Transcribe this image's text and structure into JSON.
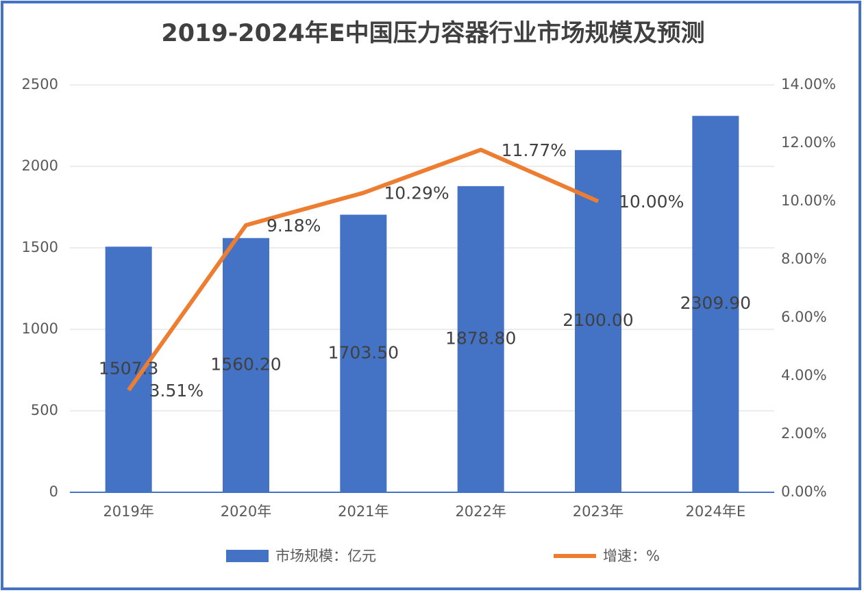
{
  "chart_data": {
    "type": "bar-line",
    "title": "2019-2024年E中国压力容器行业市场规模及预测",
    "categories": [
      "2019年",
      "2020年",
      "2021年",
      "2022年",
      "2023年",
      "2024年E"
    ],
    "series": [
      {
        "name": "市场规模：亿元",
        "type": "bar",
        "color": "#4472c4",
        "axis": "y",
        "values": [
          1507.3,
          1560.2,
          1703.5,
          1878.8,
          2100,
          2309.9
        ],
        "value_labels": [
          "1507.3",
          "1560.20",
          "1703.50",
          "1878.80",
          "2100.00",
          "2309.90"
        ]
      },
      {
        "name": "增速：%",
        "type": "line",
        "color": "#ed7d31",
        "axis": "y2",
        "values": [
          3.51,
          9.18,
          10.29,
          11.77,
          10.0,
          null
        ],
        "value_labels": [
          "3.51%",
          "9.18%",
          "10.29%",
          "11.77%",
          "10.00%",
          null
        ]
      }
    ],
    "ylim": [
      0,
      2500
    ],
    "yticks": [
      0,
      500,
      1000,
      1500,
      2000,
      2500
    ],
    "y2lim": [
      0,
      14
    ],
    "y2ticks": [
      {
        "value": 0,
        "label": "0.00%"
      },
      {
        "value": 2,
        "label": "2.00%"
      },
      {
        "value": 4,
        "label": "4.00%"
      },
      {
        "value": 6,
        "label": "6.00%"
      },
      {
        "value": 8,
        "label": "8.00%"
      },
      {
        "value": 10,
        "label": "10.00%"
      },
      {
        "value": 12,
        "label": "12.00%"
      },
      {
        "value": 14,
        "label": "14.00%"
      }
    ],
    "grid": true,
    "legend": "bottom"
  }
}
